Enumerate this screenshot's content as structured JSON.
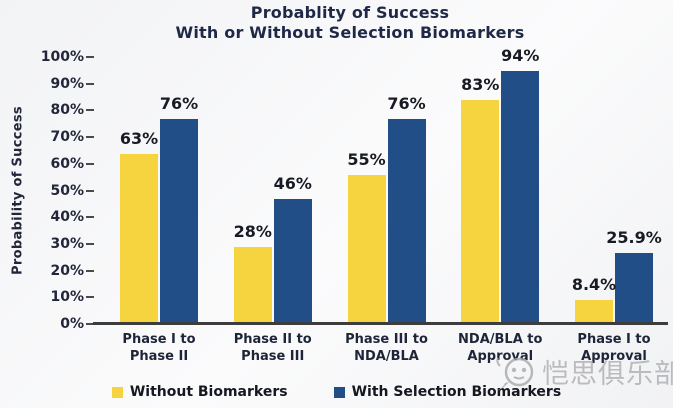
{
  "title": {
    "line1": "Probablity of Success",
    "line2": "With or Without Selection Biomarkers"
  },
  "chart_data": {
    "type": "bar",
    "title": "Probablity of Success",
    "subtitle": "With or Without Selection Biomarkers",
    "ylabel": "Probability of Success",
    "xlabel": "",
    "categories": [
      "Phase I to\nPhase II",
      "Phase II to\nPhase III",
      "Phase III to\nNDA/BLA",
      "NDA/BLA to\nApproval",
      "Phase I to\nApproval"
    ],
    "series": [
      {
        "name": "Without Biomarkers",
        "color": "#F6D440",
        "values": [
          63,
          28,
          55,
          83,
          8.4
        ],
        "labels": [
          "63%",
          "28%",
          "55%",
          "83%",
          "8.4%"
        ]
      },
      {
        "name": "With Selection Biomarkers",
        "color": "#224E87",
        "values": [
          76,
          46,
          76,
          94,
          25.9
        ],
        "labels": [
          "76%",
          "46%",
          "76%",
          "94%",
          "25.9%"
        ]
      }
    ],
    "ylim": [
      0,
      100
    ],
    "yticks": [
      "100%",
      "90%",
      "80%",
      "70%",
      "60%",
      "50%",
      "40%",
      "30%",
      "20%",
      "10%",
      "0%"
    ],
    "grid": false,
    "legend_position": "bottom"
  },
  "watermark": {
    "text": "恺思俱乐部",
    "logo": "kaisi-club-logo"
  },
  "colors": {
    "bar_yellow": "#F6D440",
    "bar_blue": "#224E87",
    "axis": "#3d3d3d",
    "title_text": "#1f2847",
    "watermark_gray": "#aeaeb2",
    "background": "#f3f4f6"
  }
}
